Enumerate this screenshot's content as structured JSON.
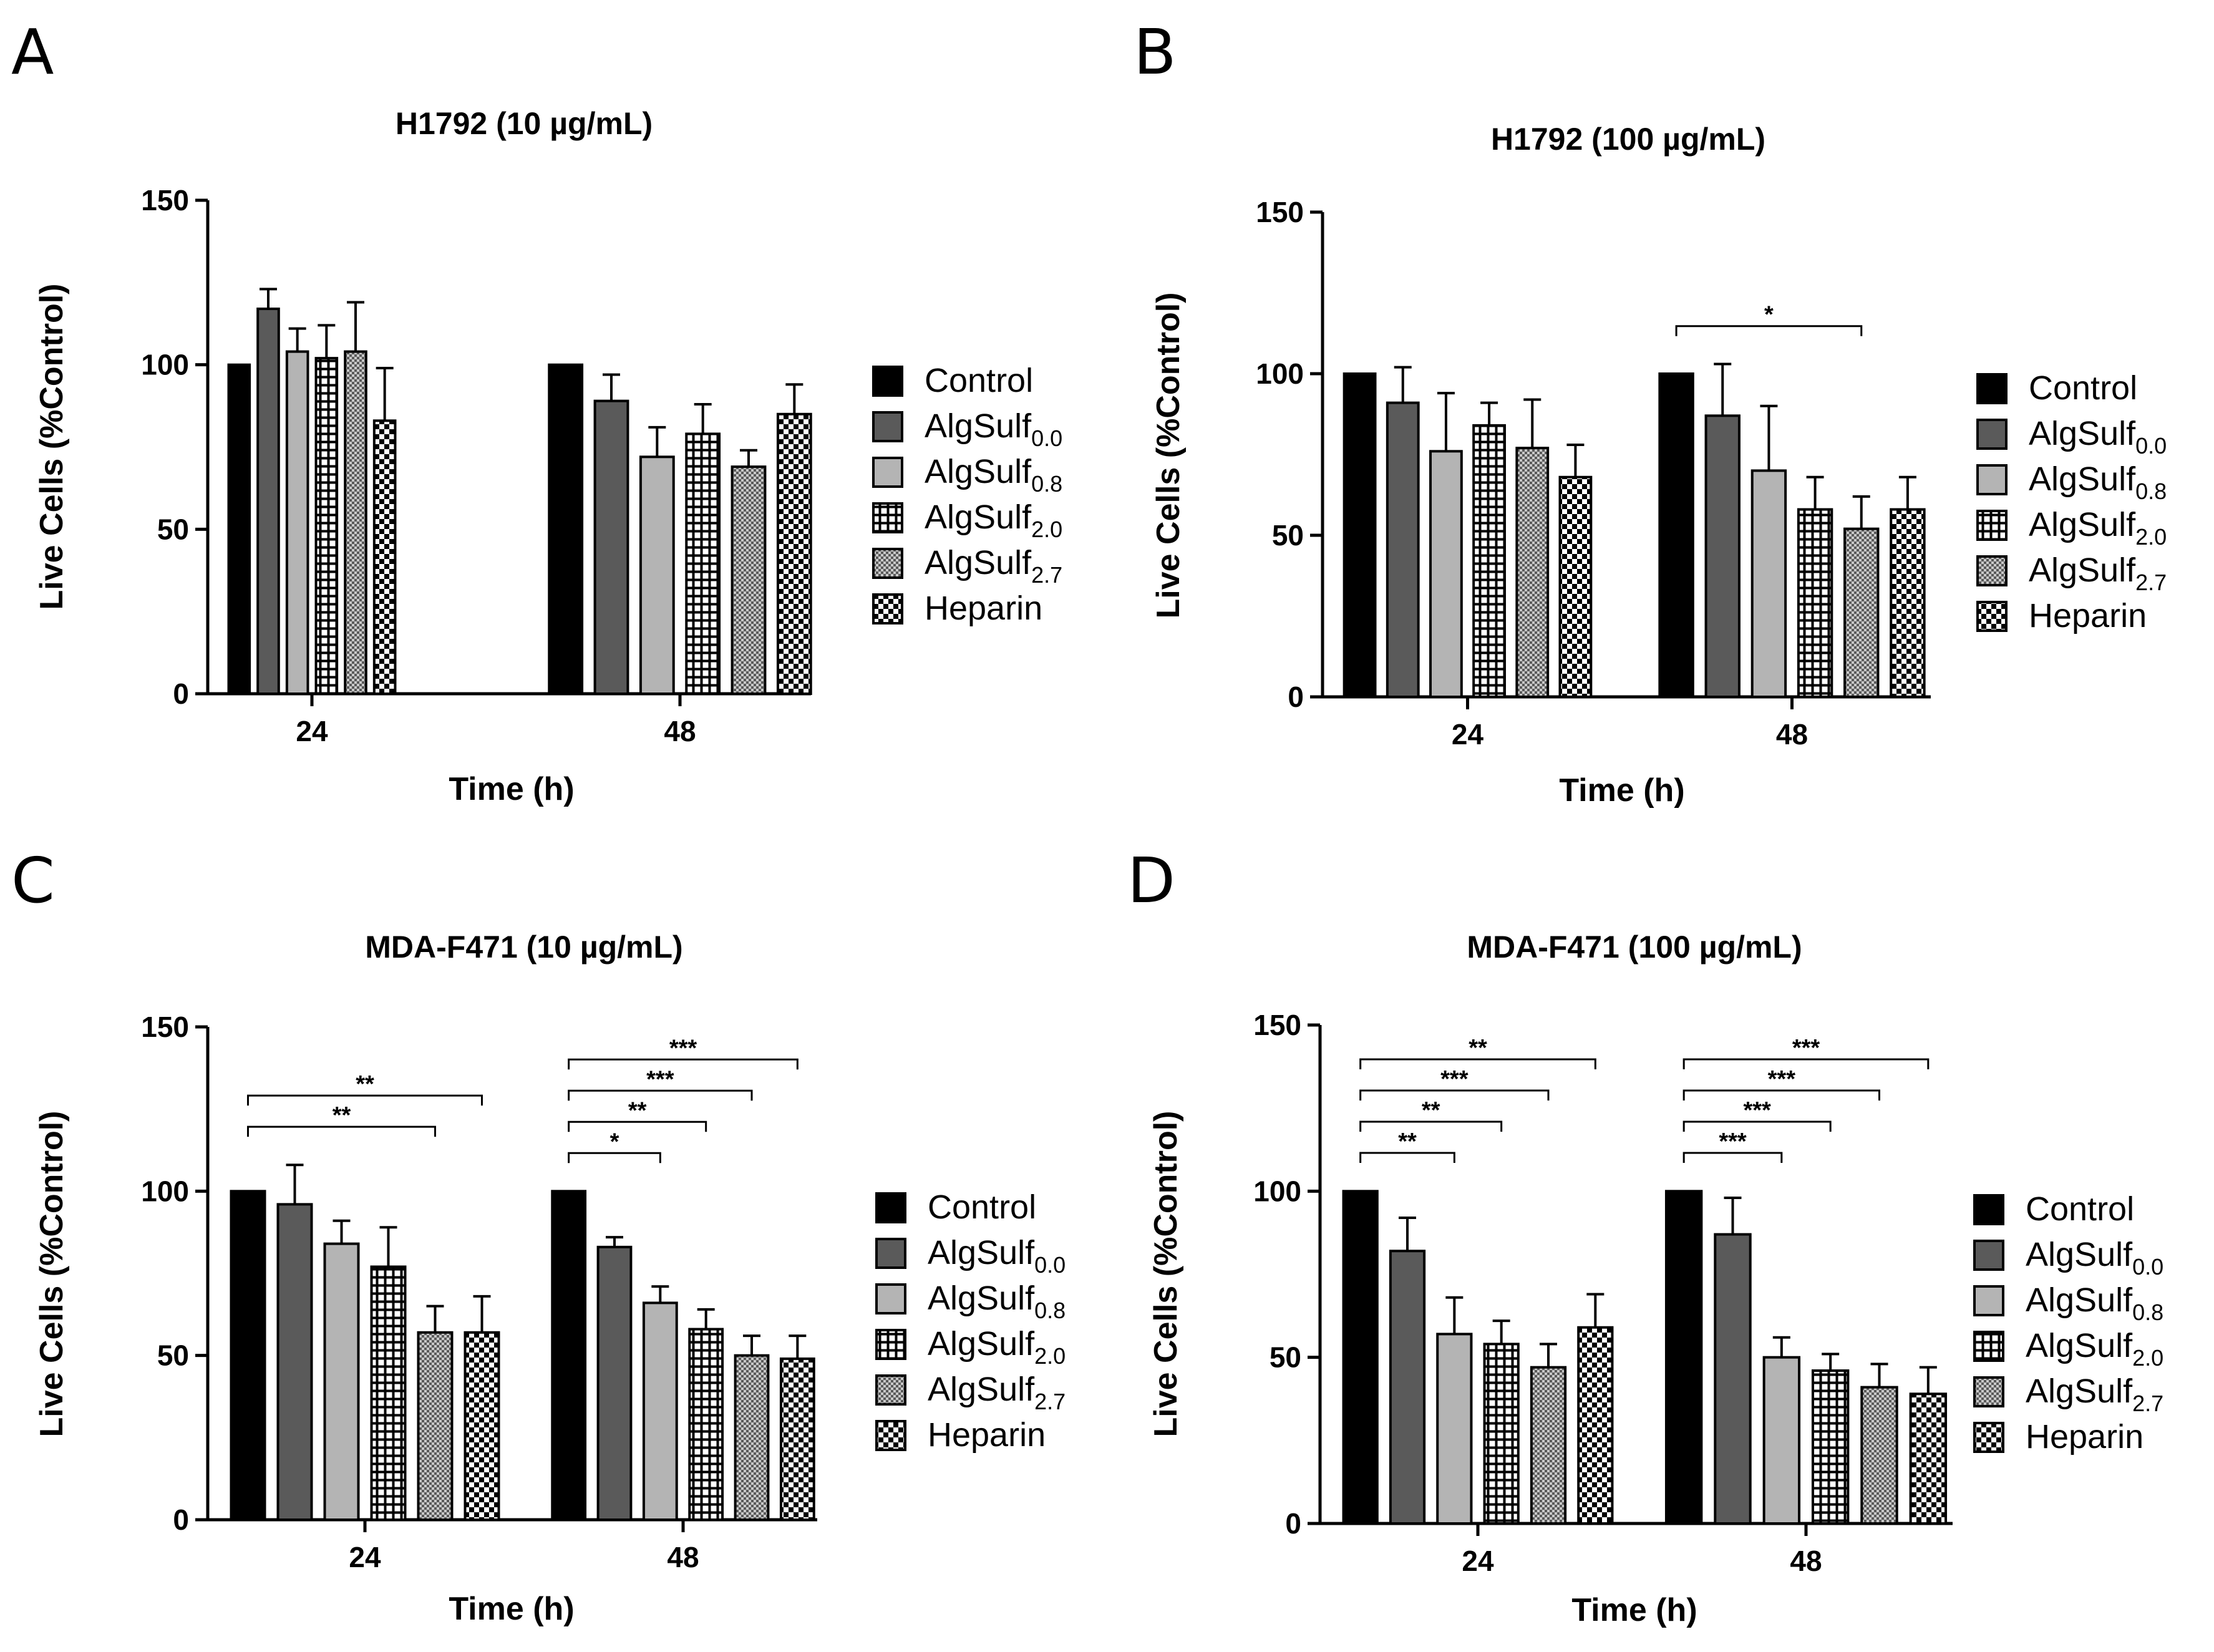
{
  "figure": {
    "letters": [
      "A",
      "B",
      "C",
      "D"
    ]
  },
  "chart_data": [
    {
      "id": "A",
      "type": "bar",
      "title": "H1792 (10 µg/mL)",
      "xlabel": "Time (h)",
      "ylabel": "Live Cells (%Control)",
      "ylim": [
        0,
        150
      ],
      "yticks": [
        "0",
        "50",
        "100",
        "150"
      ],
      "categories": [
        "24",
        "48"
      ],
      "series": [
        {
          "name": "Control",
          "legend_base": "Control",
          "legend_sub": "",
          "values": [
            100,
            100
          ],
          "errors": [
            0,
            0
          ]
        },
        {
          "name": "AlgSulf0.0",
          "legend_base": "AlgSulf",
          "legend_sub": "0.0",
          "values": [
            117,
            89
          ],
          "errors": [
            6,
            8
          ]
        },
        {
          "name": "AlgSulf0.8",
          "legend_base": "AlgSulf",
          "legend_sub": "0.8",
          "values": [
            104,
            72
          ],
          "errors": [
            7,
            9
          ]
        },
        {
          "name": "AlgSulf2.0",
          "legend_base": "AlgSulf",
          "legend_sub": "2.0",
          "values": [
            102,
            79
          ],
          "errors": [
            10,
            9
          ]
        },
        {
          "name": "AlgSulf2.7",
          "legend_base": "AlgSulf",
          "legend_sub": "2.7",
          "values": [
            104,
            69
          ],
          "errors": [
            15,
            5
          ]
        },
        {
          "name": "Heparin",
          "legend_base": "Heparin",
          "legend_sub": "",
          "values": [
            83,
            85
          ],
          "errors": [
            16,
            9
          ]
        }
      ],
      "significance": []
    },
    {
      "id": "B",
      "type": "bar",
      "title": "H1792 (100 µg/mL)",
      "xlabel": "Time (h)",
      "ylabel": "Live Cells (%Control)",
      "ylim": [
        0,
        150
      ],
      "yticks": [
        "0",
        "50",
        "100",
        "150"
      ],
      "categories": [
        "24",
        "48"
      ],
      "series": [
        {
          "name": "Control",
          "legend_base": "Control",
          "legend_sub": "",
          "values": [
            100,
            100
          ],
          "errors": [
            0,
            0
          ]
        },
        {
          "name": "AlgSulf0.0",
          "legend_base": "AlgSulf",
          "legend_sub": "0.0",
          "values": [
            91,
            87
          ],
          "errors": [
            11,
            16
          ]
        },
        {
          "name": "AlgSulf0.8",
          "legend_base": "AlgSulf",
          "legend_sub": "0.8",
          "values": [
            76,
            70
          ],
          "errors": [
            18,
            20
          ]
        },
        {
          "name": "AlgSulf2.0",
          "legend_base": "AlgSulf",
          "legend_sub": "2.0",
          "values": [
            84,
            58
          ],
          "errors": [
            7,
            10
          ]
        },
        {
          "name": "AlgSulf2.7",
          "legend_base": "AlgSulf",
          "legend_sub": "2.7",
          "values": [
            77,
            52
          ],
          "errors": [
            15,
            10
          ]
        },
        {
          "name": "Heparin",
          "legend_base": "Heparin",
          "legend_sub": "",
          "values": [
            68,
            58
          ],
          "errors": [
            10,
            10
          ]
        }
      ],
      "significance": [
        {
          "group": 1,
          "to": 4,
          "label": "*",
          "level": 0
        }
      ]
    },
    {
      "id": "C",
      "type": "bar",
      "title": "MDA-F471 (10 µg/mL)",
      "xlabel": "Time (h)",
      "ylabel": "Live Cells (%Control)",
      "ylim": [
        0,
        150
      ],
      "yticks": [
        "0",
        "50",
        "100",
        "150"
      ],
      "categories": [
        "24",
        "48"
      ],
      "series": [
        {
          "name": "Control",
          "legend_base": "Control",
          "legend_sub": "",
          "values": [
            100,
            100
          ],
          "errors": [
            0,
            0
          ]
        },
        {
          "name": "AlgSulf0.0",
          "legend_base": "AlgSulf",
          "legend_sub": "0.0",
          "values": [
            96,
            83
          ],
          "errors": [
            12,
            3
          ]
        },
        {
          "name": "AlgSulf0.8",
          "legend_base": "AlgSulf",
          "legend_sub": "0.8",
          "values": [
            84,
            66
          ],
          "errors": [
            7,
            5
          ]
        },
        {
          "name": "AlgSulf2.0",
          "legend_base": "AlgSulf",
          "legend_sub": "2.0",
          "values": [
            77,
            58
          ],
          "errors": [
            12,
            6
          ]
        },
        {
          "name": "AlgSulf2.7",
          "legend_base": "AlgSulf",
          "legend_sub": "2.7",
          "values": [
            57,
            50
          ],
          "errors": [
            8,
            6
          ]
        },
        {
          "name": "Heparin",
          "legend_base": "Heparin",
          "legend_sub": "",
          "values": [
            57,
            49
          ],
          "errors": [
            11,
            7
          ]
        }
      ],
      "significance": [
        {
          "group": 0,
          "to": 4,
          "label": "**",
          "level": 0
        },
        {
          "group": 0,
          "to": 5,
          "label": "**",
          "level": 1
        },
        {
          "group": 1,
          "to": 2,
          "label": "*",
          "level": 0
        },
        {
          "group": 1,
          "to": 3,
          "label": "**",
          "level": 1
        },
        {
          "group": 1,
          "to": 4,
          "label": "***",
          "level": 2
        },
        {
          "group": 1,
          "to": 5,
          "label": "***",
          "level": 3
        }
      ]
    },
    {
      "id": "D",
      "type": "bar",
      "title": "MDA-F471 (100 µg/mL)",
      "xlabel": "Time (h)",
      "ylabel": "Live Cells (%Control)",
      "ylim": [
        0,
        150
      ],
      "yticks": [
        "0",
        "50",
        "100",
        "150"
      ],
      "categories": [
        "24",
        "48"
      ],
      "series": [
        {
          "name": "Control",
          "legend_base": "Control",
          "legend_sub": "",
          "values": [
            100,
            100
          ],
          "errors": [
            0,
            0
          ]
        },
        {
          "name": "AlgSulf0.0",
          "legend_base": "AlgSulf",
          "legend_sub": "0.0",
          "values": [
            82,
            87
          ],
          "errors": [
            10,
            11
          ]
        },
        {
          "name": "AlgSulf0.8",
          "legend_base": "AlgSulf",
          "legend_sub": "0.8",
          "values": [
            57,
            50
          ],
          "errors": [
            11,
            6
          ]
        },
        {
          "name": "AlgSulf2.0",
          "legend_base": "AlgSulf",
          "legend_sub": "2.0",
          "values": [
            54,
            46
          ],
          "errors": [
            7,
            5
          ]
        },
        {
          "name": "AlgSulf2.7",
          "legend_base": "AlgSulf",
          "legend_sub": "2.7",
          "values": [
            47,
            41
          ],
          "errors": [
            7,
            7
          ]
        },
        {
          "name": "Heparin",
          "legend_base": "Heparin",
          "legend_sub": "",
          "values": [
            59,
            39
          ],
          "errors": [
            10,
            8
          ]
        }
      ],
      "significance": [
        {
          "group": 0,
          "to": 2,
          "label": "**",
          "level": 0
        },
        {
          "group": 0,
          "to": 3,
          "label": "**",
          "level": 1
        },
        {
          "group": 0,
          "to": 4,
          "label": "***",
          "level": 2
        },
        {
          "group": 0,
          "to": 5,
          "label": "**",
          "level": 3
        },
        {
          "group": 1,
          "to": 2,
          "label": "***",
          "level": 0
        },
        {
          "group": 1,
          "to": 3,
          "label": "***",
          "level": 1
        },
        {
          "group": 1,
          "to": 4,
          "label": "***",
          "level": 2
        },
        {
          "group": 1,
          "to": 5,
          "label": "***",
          "level": 3
        }
      ]
    }
  ]
}
